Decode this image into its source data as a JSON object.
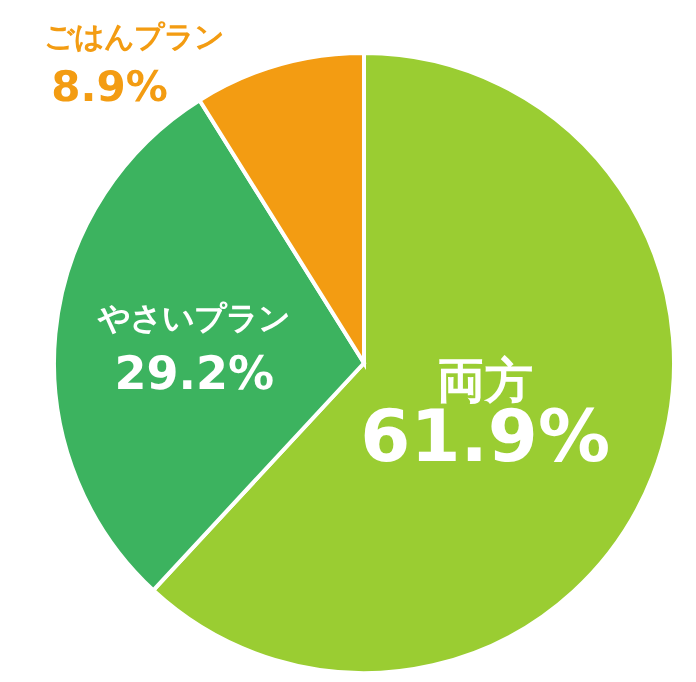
{
  "chart_data": {
    "type": "pie",
    "categories": [
      "両方",
      "やさいプラン",
      "ごはんプラン"
    ],
    "values": [
      61.9,
      29.2,
      8.9
    ],
    "colors": [
      "#9acd32",
      "#3cb35f",
      "#f39c12"
    ],
    "value_labels": [
      "61.9%",
      "29.2%",
      "8.9%"
    ]
  }
}
